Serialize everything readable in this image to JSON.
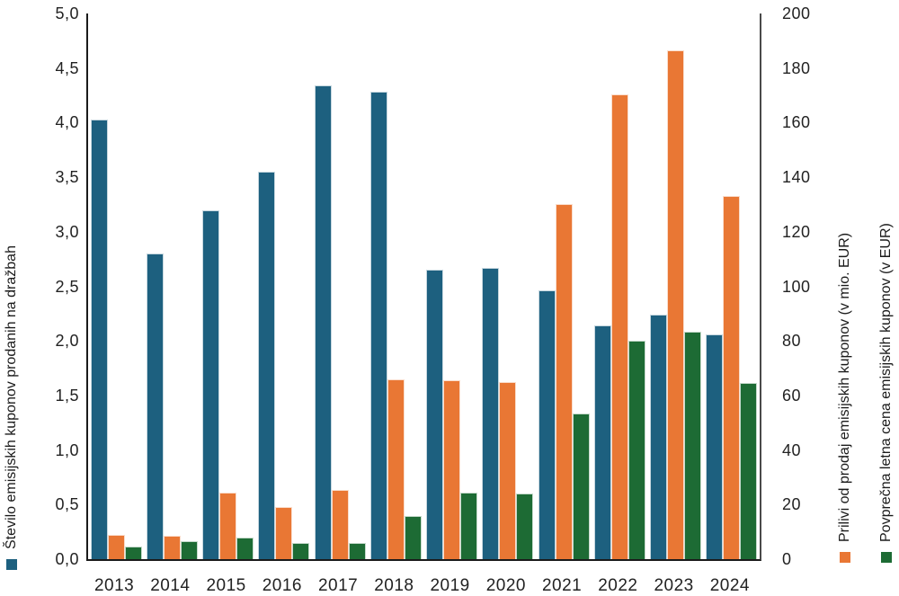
{
  "chart_data": {
    "type": "bar",
    "title": "",
    "grid": false,
    "legend_position": "axis-titles-rotated",
    "categories": [
      "2013",
      "2014",
      "2015",
      "2016",
      "2017",
      "2018",
      "2019",
      "2020",
      "2021",
      "2022",
      "2023",
      "2024"
    ],
    "series": [
      {
        "key": "stevilo-kuponov",
        "name": "Število emisijskih kuponov prodanih na dražbah",
        "axis": "left",
        "color": "#1d607f",
        "values": [
          4.03,
          2.8,
          3.2,
          3.55,
          4.34,
          4.28,
          2.65,
          2.67,
          2.46,
          2.14,
          2.24,
          2.06
        ]
      },
      {
        "key": "prilivi",
        "name": "Prilivi od prodaj emisijskih kuponov (v mio. EUR)",
        "axis": "right",
        "color": "#e97734",
        "values": [
          9,
          8.5,
          24.5,
          19,
          25.5,
          66,
          65.5,
          65,
          130,
          170.5,
          186.5,
          133
        ]
      },
      {
        "key": "povprecna-cena",
        "name": "Povprečna letna cena emisijskih kuponov (v EUR)",
        "axis": "right",
        "color": "#1d6b34",
        "values": [
          4.7,
          6.5,
          8,
          6,
          6,
          15.8,
          24.5,
          24,
          53.5,
          80,
          83.5,
          64.5
        ]
      }
    ],
    "left_axis": {
      "min": 0,
      "max": 5,
      "step": 0.5,
      "tick_labels": [
        "0,0",
        "0,5",
        "1,0",
        "1,5",
        "2,0",
        "2,5",
        "3,0",
        "3,5",
        "4,0",
        "4,5",
        "5,0"
      ]
    },
    "right_axis": {
      "min": 0,
      "max": 200,
      "step": 20,
      "tick_labels": [
        "0",
        "20",
        "40",
        "60",
        "80",
        "100",
        "120",
        "140",
        "160",
        "180",
        "200"
      ]
    }
  }
}
